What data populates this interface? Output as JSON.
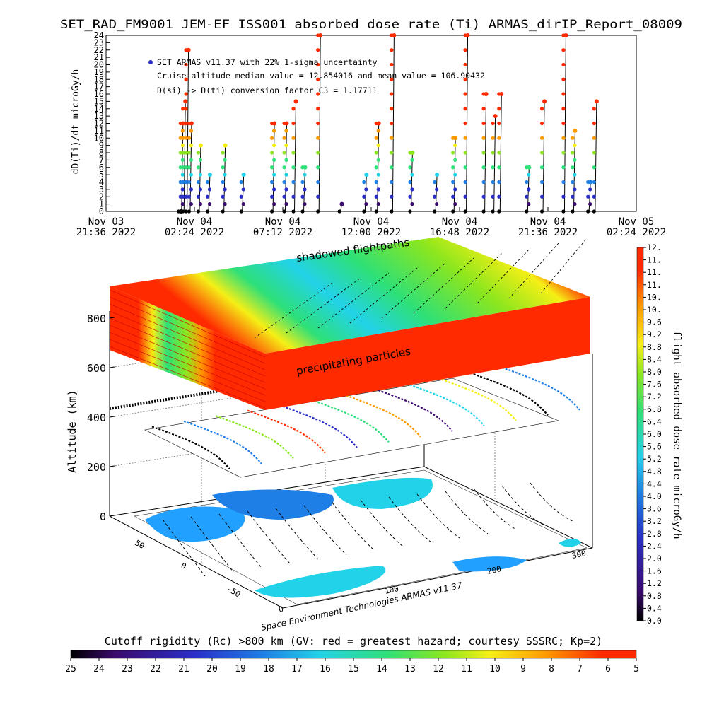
{
  "title": "SET_RAD_FM9001  JEM-EF ISS001 absorbed dose rate (Ti) ARMAS_dirIP_Report_08009",
  "top_chart": {
    "ylabel": "dD(Ti)/dt microGy/h",
    "legend_lines": [
      "SET ARMAS v11.37 with 22% 1-sigma uncertainty",
      "Cruise altitude median value = 12.854016 and mean value = 106.90432",
      "D(si) -> D(ti) conversion factor C3 = 1.17711"
    ],
    "y_ticks": [
      "0",
      "1",
      "2",
      "3",
      "4",
      "5",
      "6",
      "7",
      "8",
      "9",
      "10",
      "11",
      "12",
      "13",
      "14",
      "15",
      "16",
      "17",
      "18",
      "19",
      "20",
      "21",
      "22",
      "23",
      "24"
    ],
    "x_ticks": [
      {
        "line1": "Nov 03",
        "line2": "21:36 2022"
      },
      {
        "line1": "Nov 04",
        "line2": "02:24 2022"
      },
      {
        "line1": "Nov 04",
        "line2": "07:12 2022"
      },
      {
        "line1": "Nov 04",
        "line2": "12:00 2022"
      },
      {
        "line1": "Nov 04",
        "line2": "16:48 2022"
      },
      {
        "line1": "Nov 04",
        "line2": "21:36 2022"
      },
      {
        "line1": "Nov 05",
        "line2": "02:24 2022"
      }
    ]
  },
  "middle_panel": {
    "label_top": "shadowed flightpaths",
    "label_slab": "precipitating particles",
    "ylabel": "Altitude (km)",
    "alt_ticks": [
      "0",
      "200",
      "400",
      "600",
      "800"
    ],
    "lat_ticks": [
      "50",
      "0",
      "-50"
    ],
    "lon_ticks": [
      "0",
      "100",
      "200",
      "300"
    ],
    "credit": "Space Environment Technologies ARMAS v11.37"
  },
  "colorbar_right": {
    "label": "flight absorbed dose rate microGy/h",
    "ticks": [
      "0.0",
      "0.4",
      "0.8",
      "1.2",
      "1.6",
      "2.0",
      "2.4",
      "2.8",
      "3.2",
      "3.6",
      "4.0",
      "4.4",
      "4.8",
      "5.2",
      "5.6",
      "6.0",
      "6.4",
      "6.8",
      "7.2",
      "7.6",
      "8.0",
      "8.4",
      "8.8",
      "9.2",
      "9.6",
      "10.",
      "10.",
      "11.",
      "11.",
      "11.",
      "12."
    ]
  },
  "colorbar_bottom": {
    "label": "Cutoff rigidity (Rc) >800 km (GV: red = greatest hazard; courtesy SSSRC; Kp=2)",
    "ticks": [
      "25",
      "24",
      "23",
      "22",
      "21",
      "20",
      "19",
      "18",
      "17",
      "16",
      "15",
      "14",
      "13",
      "12",
      "11",
      "10",
      "9",
      "8",
      "7",
      "6",
      "5"
    ]
  },
  "colors": {
    "scale": [
      "#000000",
      "#3a0a6e",
      "#2a2ec8",
      "#1e7fe6",
      "#22d2e8",
      "#2ee078",
      "#8ce61e",
      "#f5ef16",
      "#ff9a00",
      "#ff2a00"
    ]
  },
  "chart_data": {
    "type": "scatter",
    "title": "SET_RAD_FM9001  JEM-EF ISS001 absorbed dose rate (Ti) ARMAS_dirIP_Report_08009",
    "xlabel": "",
    "ylabel": "dD(Ti)/dt microGy/h",
    "ylim": [
      0,
      24
    ],
    "xlim": [
      "2022-11-03 21:36",
      "2022-11-05 02:24"
    ],
    "grid": false,
    "series": [
      {
        "name": "SET ARMAS v11.37 with 22% 1-sigma uncertainty",
        "points": [
          {
            "x": "2022-11-04 01:36",
            "y": 0
          },
          {
            "x": "2022-11-04 01:42",
            "y": 12
          },
          {
            "x": "2022-11-04 01:50",
            "y": 15
          },
          {
            "x": "2022-11-04 02:00",
            "y": 22
          },
          {
            "x": "2022-11-04 02:10",
            "y": 12
          },
          {
            "x": "2022-11-04 02:40",
            "y": 9
          },
          {
            "x": "2022-11-04 03:10",
            "y": 5
          },
          {
            "x": "2022-11-04 04:00",
            "y": 9
          },
          {
            "x": "2022-11-04 05:00",
            "y": 5
          },
          {
            "x": "2022-11-04 06:40",
            "y": 12
          },
          {
            "x": "2022-11-04 07:20",
            "y": 12
          },
          {
            "x": "2022-11-04 07:50",
            "y": 15
          },
          {
            "x": "2022-11-04 08:20",
            "y": 6
          },
          {
            "x": "2022-11-04 09:10",
            "y": 24
          },
          {
            "x": "2022-11-04 10:20",
            "y": 1
          },
          {
            "x": "2022-11-04 11:40",
            "y": 5
          },
          {
            "x": "2022-11-04 12:20",
            "y": 12
          },
          {
            "x": "2022-11-04 13:10",
            "y": 24
          },
          {
            "x": "2022-11-04 14:10",
            "y": 8
          },
          {
            "x": "2022-11-04 15:30",
            "y": 5
          },
          {
            "x": "2022-11-04 16:30",
            "y": 10
          },
          {
            "x": "2022-11-04 17:10",
            "y": 24
          },
          {
            "x": "2022-11-04 18:10",
            "y": 16
          },
          {
            "x": "2022-11-04 18:40",
            "y": 13
          },
          {
            "x": "2022-11-04 19:00",
            "y": 16
          },
          {
            "x": "2022-11-04 20:30",
            "y": 6
          },
          {
            "x": "2022-11-04 21:20",
            "y": 15
          },
          {
            "x": "2022-11-04 22:30",
            "y": 24
          },
          {
            "x": "2022-11-04 23:00",
            "y": 11
          },
          {
            "x": "2022-11-04 23:50",
            "y": 4
          },
          {
            "x": "2022-11-05 00:10",
            "y": 15
          }
        ]
      }
    ],
    "colorbar_range": [
      0.0,
      12.0
    ],
    "cutoff_rigidity_range_GV": [
      25,
      5
    ]
  }
}
